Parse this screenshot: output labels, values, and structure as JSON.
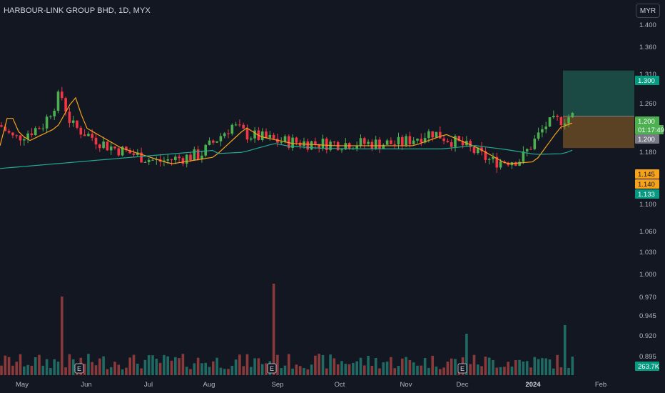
{
  "header": {
    "title": "HARBOUR-LINK GROUP BHD, 1D, MYX",
    "currency_button": "MYR"
  },
  "colors": {
    "up": "#26a69a",
    "down": "#ef5350",
    "up_candle": "#4caf50",
    "down_candle": "#f23645",
    "ma_fast": "#f7a21b",
    "ma_slow": "#22ab94",
    "profit_zone": "#1b4a45",
    "loss_zone": "#5b4225"
  },
  "chart_data": {
    "type": "candlestick",
    "y_ticks": [
      "1.400",
      "1.360",
      "1.310",
      "1.260",
      "1.180",
      "1.100",
      "1.060",
      "1.030",
      "1.000",
      "0.970",
      "0.945",
      "0.920",
      "0.895"
    ],
    "x_ticks": [
      "May",
      "Jun",
      "Jul",
      "Aug",
      "Sep",
      "Oct",
      "Nov",
      "Dec",
      "2024",
      "Feb"
    ],
    "bold_x_tick": "2024",
    "price_badges": [
      {
        "label": "1.300",
        "kind": "target"
      },
      {
        "label": "1.200",
        "kind": "last"
      },
      {
        "label": "01:17:49",
        "kind": "countdown"
      },
      {
        "label": "1.200",
        "kind": "entry"
      },
      {
        "label": "1.145",
        "kind": "ma_fast"
      },
      {
        "label": "1.140",
        "kind": "ma_fast2"
      },
      {
        "label": "1.133",
        "kind": "ma_slow"
      },
      {
        "label": "263.7K",
        "kind": "volume"
      }
    ],
    "earnings_markers": [
      "E",
      "E",
      "E"
    ],
    "position": {
      "entry": 1.2,
      "target": 1.3,
      "stop": 1.13
    }
  }
}
